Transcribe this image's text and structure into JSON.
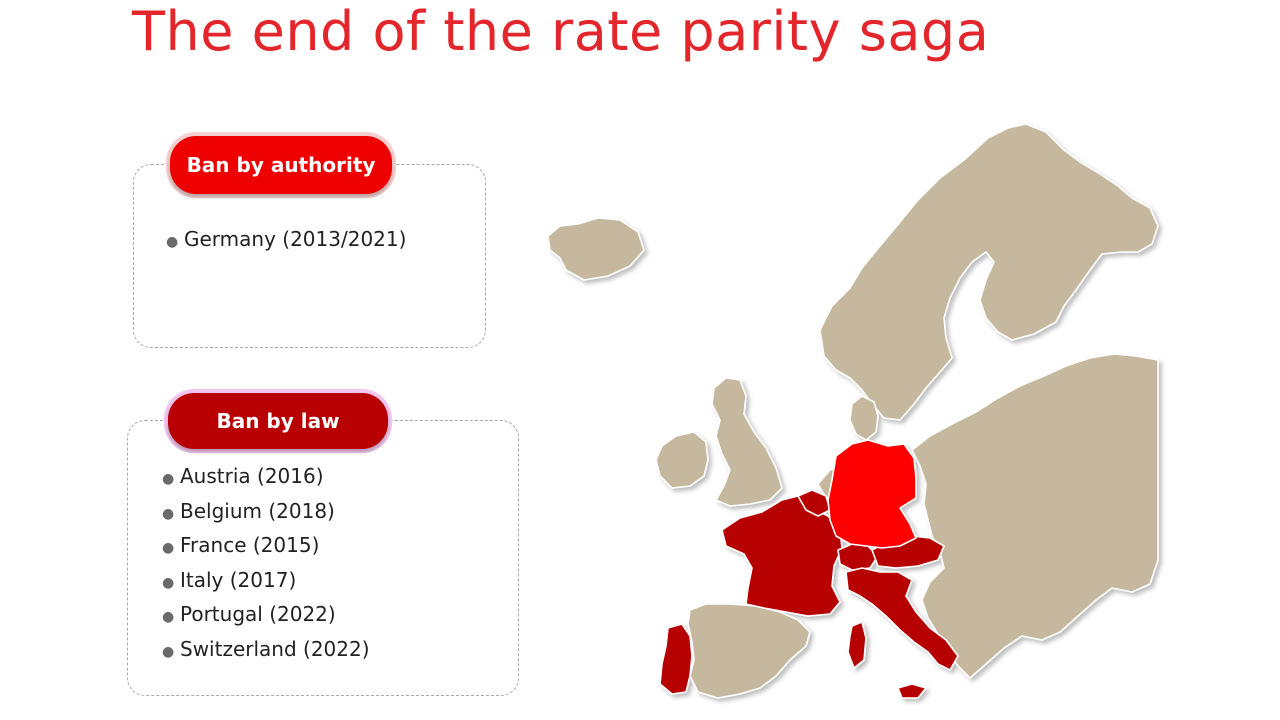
{
  "title": "The end of the rate parity saga",
  "authority": {
    "label": "Ban by authority",
    "items": [
      "Germany (2013/2021)"
    ]
  },
  "law": {
    "label": "Ban by law",
    "items": [
      "Austria (2016)",
      "Belgium (2018)",
      "France (2015)",
      "Italy (2017)",
      "Portugal (2022)",
      "Switzerland (2022)"
    ]
  },
  "colors": {
    "land": "#c6b89e",
    "authority": "#ff0000",
    "law": "#b70000",
    "title": "#e3262b"
  }
}
